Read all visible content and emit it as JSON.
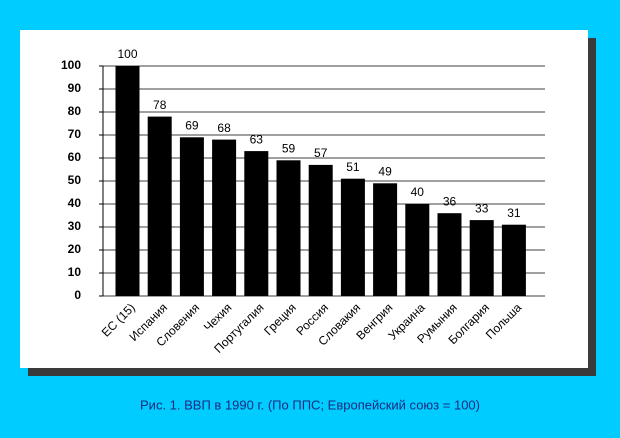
{
  "chart_data": {
    "type": "bar",
    "caption": "Рис. 1. ВВП в 1990 г. (По ППС; Европейский союз = 100)",
    "categories": [
      "ЕС (15)",
      "Испания",
      "Словения",
      "Чехия",
      "Португалия",
      "Греция",
      "Россия",
      "Словакия",
      "Венгрия",
      "Украина",
      "Румыния",
      "Болгария",
      "Польша"
    ],
    "values": [
      100,
      78,
      69,
      68,
      63,
      59,
      57,
      51,
      49,
      40,
      36,
      33,
      31
    ],
    "color": "#000000",
    "ylim": [
      0,
      100
    ],
    "yticks": [
      0,
      10,
      20,
      30,
      40,
      50,
      60,
      70,
      80,
      90,
      100
    ],
    "grid": true
  }
}
